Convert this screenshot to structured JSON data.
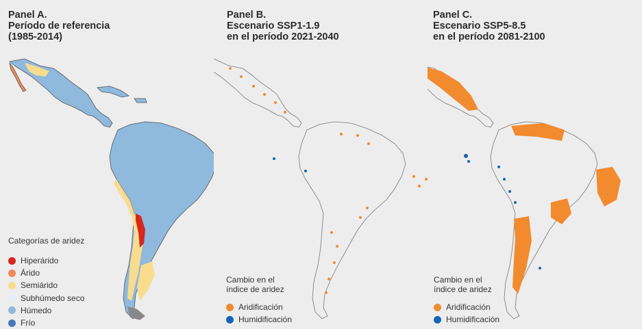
{
  "panels": [
    {
      "title": [
        "Panel A.",
        "Período de referencia",
        "(1985-2014)"
      ],
      "legend_title": [
        "Categorías de aridez"
      ],
      "legend": [
        {
          "label": "Hiperárido",
          "color": "#d7261e"
        },
        {
          "label": "Árido",
          "color": "#f08a5b"
        },
        {
          "label": "Semiárido",
          "color": "#f9dc8e"
        },
        {
          "label": "Subhúmedo seco",
          "color": "#e3eef6"
        },
        {
          "label": "Húmedo",
          "color": "#8fb9dd"
        },
        {
          "label": "Frío",
          "color": "#4a78b5"
        }
      ]
    },
    {
      "title": [
        "Panel B.",
        "Escenario SSP1-1.9",
        "en el período 2021-2040"
      ],
      "legend_title": [
        "Cambio en el",
        "índice de aridez"
      ],
      "legend": [
        {
          "label": "Aridificación",
          "color": "#f28a2e"
        },
        {
          "label": "Humidificación",
          "color": "#1565b5"
        }
      ]
    },
    {
      "title": [
        "Panel C.",
        "Escenario SSP5-8.5",
        "en el período 2081-2100"
      ],
      "legend_title": [
        "Cambio en el",
        "índice de aridez"
      ],
      "legend": [
        {
          "label": "Aridificación",
          "color": "#f28a2e"
        },
        {
          "label": "Humidificación",
          "color": "#1565b5"
        }
      ]
    }
  ]
}
